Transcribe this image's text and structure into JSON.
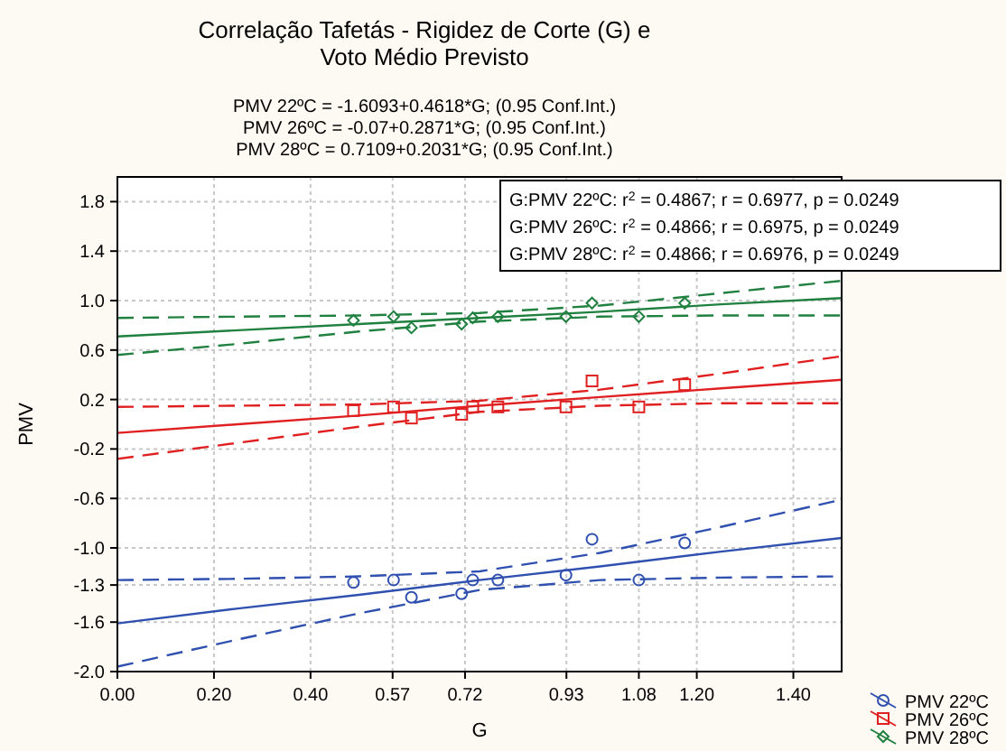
{
  "chart_data": {
    "type": "scatter",
    "title": "Correlação Tafetás - Rigidez de Corte (G) e\nVoto Médio Previsto",
    "subtitle": "PMV 22ºC = -1.6093+0.4618*G; (0.95 Conf.Int.)\nPMV 26ºC = -0.07+0.2871*G; (0.95 Conf.Int.)\nPMV 28ºC = 0.7109+0.2031*G; (0.95 Conf.Int.)",
    "xlabel": "G",
    "ylabel": "PMV",
    "xlim": [
      0,
      1.5
    ],
    "xticks": [
      {
        "value": 0,
        "label": "0.00"
      },
      {
        "value": 0.2,
        "label": "0.20"
      },
      {
        "value": 0.4,
        "label": "0.40"
      },
      0.57,
      0.72,
      0.93,
      1.08,
      {
        "value": 1.2,
        "label": "1.20"
      },
      {
        "value": 1.4,
        "label": "1.40"
      }
    ],
    "ylim": [
      -2,
      2
    ],
    "yticks": [
      {
        "value": -2,
        "label": "-2.0"
      },
      -1.6,
      -1.3,
      {
        "value": -1,
        "label": "-1.0"
      },
      -0.6,
      -0.2,
      0.2,
      0.6,
      {
        "value": 1,
        "label": "1.0"
      },
      1.4,
      1.8
    ],
    "grid": true,
    "legend": "bottom right",
    "annotations": [
      "G:PMV 22ºC:  r$^{2}$ = 0.4867;  r = 0.6977, p = 0.0249",
      "G:PMV 26ºC:  r$^{2}$ = 0.4866;  r = 0.6975, p = 0.0249",
      "G:PMV 28ºC:  r$^{2}$ = 0.4866;  r = 0.6976, p = 0.0249"
    ],
    "series": [
      {
        "name": "PMV 22ºC",
        "color": "#3050b0",
        "marker": "circle",
        "x": [
          0.489,
          0.572,
          0.609,
          0.713,
          0.736,
          0.788,
          0.929,
          0.983,
          1.08,
          1.175
        ],
        "values": [
          -1.28,
          -1.26,
          -1.4,
          -1.37,
          -1.26,
          -1.26,
          -1.22,
          -0.93,
          -1.26,
          -0.96
        ]
      },
      {
        "name": "PMV 26ºC",
        "color": "#e02020",
        "marker": "square",
        "x": [
          0.489,
          0.572,
          0.609,
          0.713,
          0.736,
          0.788,
          0.929,
          0.983,
          1.08,
          1.175
        ],
        "values": [
          0.11,
          0.14,
          0.05,
          0.08,
          0.14,
          0.14,
          0.14,
          0.35,
          0.14,
          0.32
        ]
      },
      {
        "name": "PMV 28ºC",
        "color": "#208040",
        "marker": "diamond",
        "x": [
          0.489,
          0.572,
          0.609,
          0.713,
          0.736,
          0.788,
          0.929,
          0.983,
          1.08,
          1.175
        ],
        "values": [
          0.84,
          0.87,
          0.78,
          0.81,
          0.86,
          0.87,
          0.87,
          0.98,
          0.87,
          0.98
        ]
      },
      {
        "type": "line",
        "color": "#3050b0",
        "line_style": "solid",
        "x": [
          0,
          0.25,
          0.5,
          0.75,
          1,
          1.25,
          1.5
        ],
        "values": [
          -1.61,
          -1.49,
          -1.38,
          -1.26,
          -1.15,
          -1.03,
          -0.92
        ]
      },
      {
        "type": "line",
        "color": "#3050b0",
        "line_style": "dashed",
        "x": [
          0,
          0.25,
          0.5,
          0.75,
          1,
          1.25,
          1.5
        ],
        "values": [
          -1.96,
          -1.74,
          -1.53,
          -1.34,
          -1.26,
          -1.24,
          -1.23
        ]
      },
      {
        "type": "line",
        "color": "#3050b0",
        "line_style": "dashed",
        "x": [
          0,
          0.25,
          0.5,
          0.75,
          1,
          1.25,
          1.5
        ],
        "values": [
          -1.26,
          -1.25,
          -1.23,
          -1.19,
          -1.04,
          -0.83,
          -0.61
        ]
      },
      {
        "type": "line",
        "color": "#e02020",
        "line_style": "solid",
        "x": [
          0,
          0.25,
          0.5,
          0.75,
          1,
          1.25,
          1.5
        ],
        "values": [
          -0.07,
          0,
          0.07,
          0.15,
          0.22,
          0.29,
          0.36
        ]
      },
      {
        "type": "line",
        "color": "#e02020",
        "line_style": "dashed",
        "x": [
          0,
          0.25,
          0.5,
          0.75,
          1,
          1.25,
          1.5
        ],
        "values": [
          -0.28,
          -0.15,
          -0.02,
          0.1,
          0.15,
          0.17,
          0.17
        ]
      },
      {
        "type": "line",
        "color": "#e02020",
        "line_style": "dashed",
        "x": [
          0,
          0.25,
          0.5,
          0.75,
          1,
          1.25,
          1.5
        ],
        "values": [
          0.14,
          0.15,
          0.16,
          0.19,
          0.28,
          0.41,
          0.55
        ]
      },
      {
        "type": "line",
        "color": "#208040",
        "line_style": "solid",
        "x": [
          0,
          0.25,
          0.5,
          0.75,
          1,
          1.25,
          1.5
        ],
        "values": [
          0.71,
          0.76,
          0.81,
          0.86,
          0.91,
          0.97,
          1.02
        ]
      },
      {
        "type": "line",
        "color": "#208040",
        "line_style": "dashed",
        "x": [
          0,
          0.25,
          0.5,
          0.75,
          1,
          1.25,
          1.5
        ],
        "values": [
          0.56,
          0.65,
          0.75,
          0.83,
          0.87,
          0.88,
          0.88
        ]
      },
      {
        "type": "line",
        "color": "#208040",
        "line_style": "dashed",
        "x": [
          0,
          0.25,
          0.5,
          0.75,
          1,
          1.25,
          1.5
        ],
        "values": [
          0.86,
          0.87,
          0.88,
          0.9,
          0.96,
          1.06,
          1.16
        ]
      }
    ]
  }
}
